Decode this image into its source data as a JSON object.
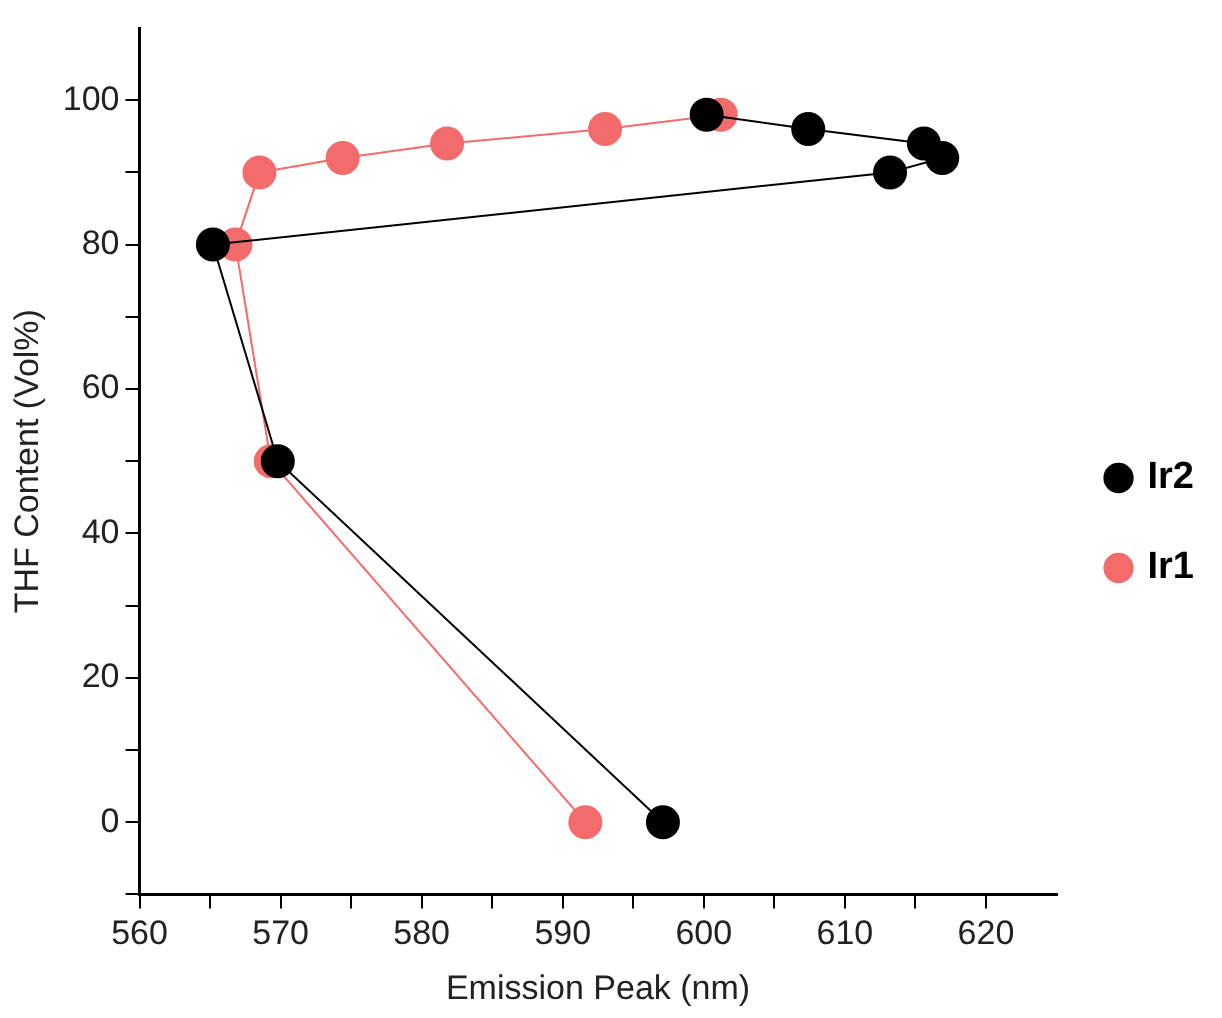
{
  "chart_data": {
    "type": "line",
    "xlabel": "Emission Peak (nm)",
    "ylabel": "THF Content (Vol%)",
    "xlim": [
      560,
      625
    ],
    "ylim": [
      -10,
      110
    ],
    "xticks": [
      560,
      {
        "value": 565,
        "label": null
      },
      570,
      {
        "value": 575,
        "label": null
      },
      580,
      {
        "value": 585,
        "label": null
      },
      590,
      {
        "value": 595,
        "label": null
      },
      600,
      {
        "value": 605,
        "label": null
      },
      610,
      {
        "value": 615,
        "label": null
      },
      620
    ],
    "yticks": [
      {
        "value": -10,
        "label": null
      },
      0,
      {
        "value": 10,
        "label": null
      },
      20,
      {
        "value": 30,
        "label": null
      },
      40,
      {
        "value": 50,
        "label": null
      },
      60,
      {
        "value": 70,
        "label": null
      },
      80,
      {
        "value": 90,
        "label": null
      },
      100
    ],
    "series": [
      {
        "name": "Ir1",
        "color": "#f46b6b",
        "x": [
          591.6,
          569.3,
          566.8,
          568.5,
          574.4,
          581.8,
          593.0,
          601.2
        ],
        "values": [
          0,
          50,
          80,
          90,
          92,
          94,
          96,
          98
        ]
      },
      {
        "name": "Ir2",
        "color": "#000000",
        "x": [
          597.1,
          569.8,
          565.2,
          613.2,
          616.9,
          615.6,
          607.4,
          600.2
        ],
        "values": [
          0,
          50,
          80,
          90,
          92,
          94,
          96,
          98
        ]
      }
    ],
    "grid": false,
    "legend": "right",
    "marker": "circle",
    "line_style": "solid"
  }
}
